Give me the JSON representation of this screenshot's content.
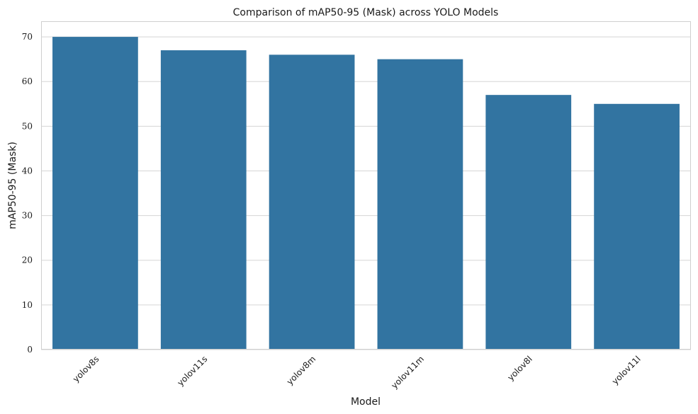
{
  "chart_data": {
    "type": "bar",
    "title": "Comparison of mAP50-95 (Mask) across YOLO Models",
    "xlabel": "Model",
    "ylabel": "mAP50-95 (Mask)",
    "categories": [
      "yolov8s",
      "yolov11s",
      "yolov8m",
      "yolov11m",
      "yolov8l",
      "yolov11l"
    ],
    "values": [
      70,
      67,
      66,
      65,
      57,
      55
    ],
    "ylim": [
      0,
      73.5
    ],
    "yticks": [
      0,
      10,
      20,
      30,
      40,
      50,
      60,
      70
    ],
    "grid": "horizontal",
    "bar_color": "#3274a1",
    "xtick_rotation": 45
  }
}
